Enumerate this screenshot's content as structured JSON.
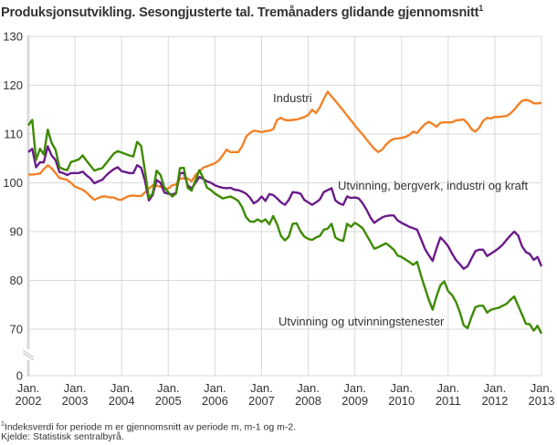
{
  "title": "Produksjonsutvikling. Sesongjusterte tal. Tremånaders glidande gjennomsnitt",
  "title_footnote_mark": "1",
  "footnote": {
    "mark": "1",
    "text": "Indeksverdi for periode m er gjennomsnitt av periode m, m-1 og m-2."
  },
  "source": "Kjelde: Statistisk sentralbyrå.",
  "chart_data": {
    "type": "line",
    "title": "Produksjonsutvikling. Sesongjusterte tal. Tremånaders glidande gjennomsnitt",
    "x_start": "2002-01",
    "x_end": "2013-01",
    "x_frequency": "monthly",
    "x_tick_labels": [
      [
        "Jan.",
        "2002"
      ],
      [
        "Jan.",
        "2003"
      ],
      [
        "Jan.",
        "2004"
      ],
      [
        "Jan.",
        "2005"
      ],
      [
        "Jan.",
        "2006"
      ],
      [
        "Jan.",
        "2007"
      ],
      [
        "Jan.",
        "2008"
      ],
      [
        "Jan.",
        "2009"
      ],
      [
        "Jan.",
        "2010"
      ],
      [
        "Jan.",
        "2011"
      ],
      [
        "Jan.",
        "2012"
      ],
      [
        "Jan.",
        "2013"
      ]
    ],
    "y_ticks": [
      0,
      70,
      80,
      90,
      100,
      110,
      120,
      130
    ],
    "ylim": [
      0,
      130
    ],
    "y_axis_break": [
      0,
      70
    ],
    "grid": true,
    "legend": "inline labels",
    "series": [
      {
        "name": "Industri",
        "color": "#f28228",
        "values": [
          101.7,
          101.7,
          101.8,
          101.9,
          102.8,
          103.6,
          103.0,
          102.0,
          101.0,
          100.8,
          100.6,
          100.0,
          99.2,
          98.9,
          98.6,
          98.0,
          97.2,
          96.5,
          96.9,
          97.2,
          97.2,
          97.0,
          97.0,
          96.6,
          96.5,
          97.0,
          97.3,
          97.4,
          97.3,
          97.3,
          98.0,
          98.8,
          99.5,
          99.4,
          99.2,
          98.9,
          98.8,
          99.5,
          99.6,
          100.9,
          100.9,
          100.9,
          100.3,
          101.6,
          102.3,
          103.1,
          103.4,
          103.7,
          104.0,
          104.6,
          105.6,
          106.8,
          106.3,
          106.3,
          106.3,
          107.5,
          109.4,
          110.2,
          110.7,
          110.6,
          110.4,
          110.6,
          110.7,
          111.0,
          112.9,
          113.3,
          112.9,
          112.8,
          112.9,
          113.0,
          113.2,
          113.5,
          113.9,
          115.0,
          114.3,
          115.5,
          117.2,
          118.7,
          117.7,
          116.8,
          115.8,
          114.8,
          113.8,
          112.8,
          111.8,
          110.8,
          109.9,
          108.9,
          107.9,
          107.0,
          106.3,
          106.8,
          107.8,
          108.6,
          109.0,
          109.1,
          109.2,
          109.4,
          109.8,
          110.5,
          110.2,
          111.2,
          112.0,
          112.5,
          112.1,
          111.5,
          112.3,
          112.4,
          112.4,
          112.4,
          112.8,
          112.9,
          113.0,
          112.2,
          111.0,
          110.5,
          111.3,
          112.7,
          113.3,
          113.2,
          113.5,
          113.5,
          113.6,
          113.7,
          114.2,
          115.0,
          116.0,
          116.8,
          117.0,
          116.8,
          116.3,
          116.3,
          116.4
        ]
      },
      {
        "name": "Utvinning, bergverk, industri og kraft",
        "color": "#6a1b8a",
        "values": [
          106.3,
          107.0,
          103.2,
          104.2,
          104.2,
          107.5,
          105.6,
          104.7,
          102.2,
          102.0,
          101.6,
          102.0,
          102.0,
          102.0,
          102.3,
          101.5,
          100.9,
          99.9,
          100.3,
          100.6,
          101.5,
          102.2,
          102.8,
          103.2,
          102.4,
          102.2,
          102.0,
          102.0,
          103.6,
          103.1,
          100.5,
          96.4,
          97.5,
          100.6,
          100.0,
          98.0,
          97.8,
          97.6,
          97.9,
          101.9,
          102.1,
          99.5,
          98.8,
          100.0,
          101.2,
          100.8,
          100.3,
          100.0,
          99.5,
          99.2,
          99.0,
          98.9,
          99.0,
          98.6,
          98.5,
          98.2,
          97.8,
          97.0,
          95.8,
          96.3,
          97.2,
          96.3,
          97.7,
          97.5,
          96.8,
          96.0,
          95.5,
          96.5,
          98.1,
          98.0,
          97.8,
          96.5,
          96.0,
          95.5,
          96.0,
          96.6,
          98.1,
          98.5,
          98.9,
          96.4,
          95.8,
          95.5,
          97.2,
          96.9,
          97.0,
          96.8,
          95.8,
          94.5,
          92.9,
          91.8,
          92.4,
          92.9,
          93.2,
          93.3,
          93.3,
          92.3,
          91.8,
          91.4,
          91.0,
          90.7,
          90.4,
          88.5,
          86.5,
          85.2,
          84.0,
          86.5,
          88.8,
          88.0,
          87.0,
          85.5,
          84.2,
          83.3,
          82.4,
          82.9,
          84.5,
          86.0,
          86.3,
          86.3,
          85.0,
          85.5,
          86.0,
          86.6,
          87.3,
          88.3,
          89.2,
          90.0,
          89.2,
          87.0,
          85.8,
          85.4,
          84.2,
          84.8,
          82.9
        ]
      },
      {
        "name": "Utvinning og utvinningstenester",
        "color": "#3d8a00",
        "values": [
          111.8,
          112.9,
          104.7,
          107.0,
          105.8,
          110.9,
          108.2,
          106.8,
          103.2,
          102.8,
          102.6,
          104.3,
          104.5,
          104.8,
          105.6,
          104.5,
          103.5,
          102.5,
          102.8,
          103.0,
          104.0,
          105.0,
          106.0,
          106.5,
          106.2,
          105.9,
          105.6,
          105.4,
          108.4,
          107.6,
          102.5,
          96.9,
          97.8,
          102.5,
          101.6,
          99.0,
          98.1,
          97.2,
          97.8,
          103.0,
          103.1,
          99.0,
          98.4,
          100.5,
          102.6,
          101.0,
          99.0,
          98.5,
          97.8,
          97.3,
          96.8,
          97.0,
          97.2,
          96.8,
          96.3,
          95.0,
          93.0,
          92.1,
          92.0,
          92.5,
          92.0,
          92.5,
          91.5,
          93.2,
          91.5,
          89.1,
          88.2,
          89.0,
          91.6,
          91.7,
          90.1,
          89.0,
          88.5,
          88.3,
          88.8,
          89.1,
          90.4,
          90.6,
          91.6,
          88.8,
          88.3,
          88.1,
          91.6,
          91.0,
          91.8,
          91.3,
          90.7,
          89.3,
          87.9,
          86.5,
          86.8,
          87.2,
          87.6,
          87.0,
          86.3,
          85.1,
          84.8,
          84.3,
          83.8,
          83.2,
          83.8,
          81.0,
          78.5,
          76.1,
          74.0,
          76.7,
          79.0,
          79.8,
          77.8,
          77.0,
          75.6,
          73.5,
          70.8,
          70.2,
          72.5,
          74.5,
          74.8,
          74.8,
          73.4,
          74.0,
          74.2,
          74.4,
          74.8,
          75.2,
          76.0,
          76.7,
          74.8,
          73.0,
          71.1,
          71.0,
          69.7,
          70.7,
          69.1
        ]
      }
    ]
  }
}
